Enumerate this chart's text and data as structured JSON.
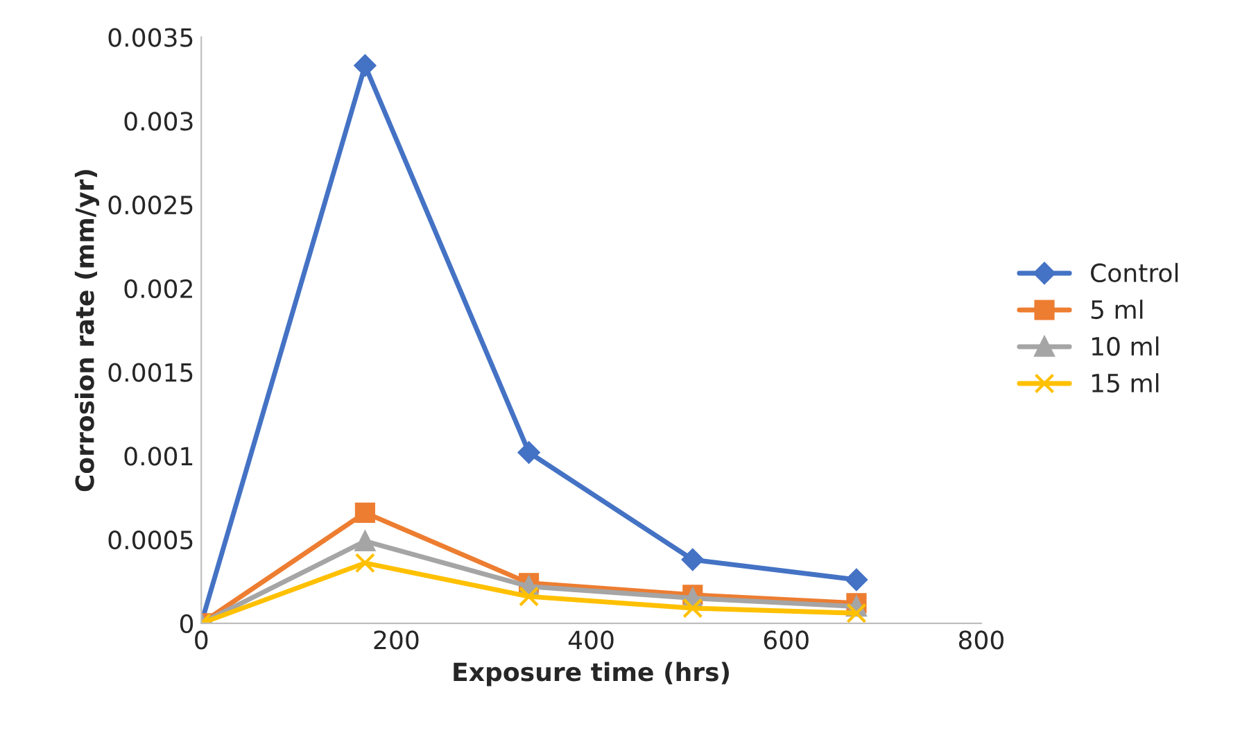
{
  "chart_data": {
    "type": "line",
    "xlabel": "Exposure time (hrs)",
    "ylabel": "Corrosion rate (mm/yr)",
    "x": [
      0,
      168,
      336,
      504,
      672
    ],
    "series": [
      {
        "name": "Control",
        "color": "#4472c4",
        "marker": "diamond",
        "values": [
          0,
          0.00333,
          0.00102,
          0.00038,
          0.00026
        ]
      },
      {
        "name": "5 ml",
        "color": "#ed7d31",
        "marker": "square",
        "values": [
          0,
          0.00066,
          0.00024,
          0.00017,
          0.00012
        ]
      },
      {
        "name": "10 ml",
        "color": "#a5a5a5",
        "marker": "triangle",
        "values": [
          0,
          0.00049,
          0.00022,
          0.00015,
          0.0001
        ]
      },
      {
        "name": "15 ml",
        "color": "#ffc000",
        "marker": "cross",
        "values": [
          0,
          0.00036,
          0.00016,
          9e-05,
          6e-05
        ]
      }
    ],
    "xlim": [
      0,
      800
    ],
    "xticks": [
      0,
      200,
      400,
      600,
      800
    ],
    "ylim": [
      0,
      0.0035
    ],
    "yticks": [
      0,
      0.0005,
      0.001,
      0.0015,
      0.002,
      0.0025,
      0.003,
      0.0035
    ],
    "grid": false,
    "legend": "right",
    "line_style": "solid"
  }
}
